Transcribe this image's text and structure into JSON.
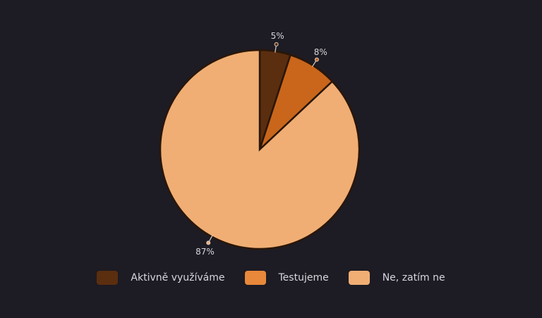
{
  "chart_data": {
    "type": "pie",
    "categories": [
      "Aktivně využíváme",
      "Testujeme",
      "Ne, zatím ne"
    ],
    "values": [
      5,
      8,
      87
    ],
    "data_labels": [
      "5%",
      "8%",
      "87%"
    ],
    "colors": [
      "#5a2e0f",
      "#c9661b",
      "#f0ae74"
    ],
    "legend_colors": [
      "#5a2e0f",
      "#e8883a",
      "#f0ae74"
    ],
    "legend_position": "bottom",
    "start_angle": "top",
    "direction": "clockwise"
  }
}
